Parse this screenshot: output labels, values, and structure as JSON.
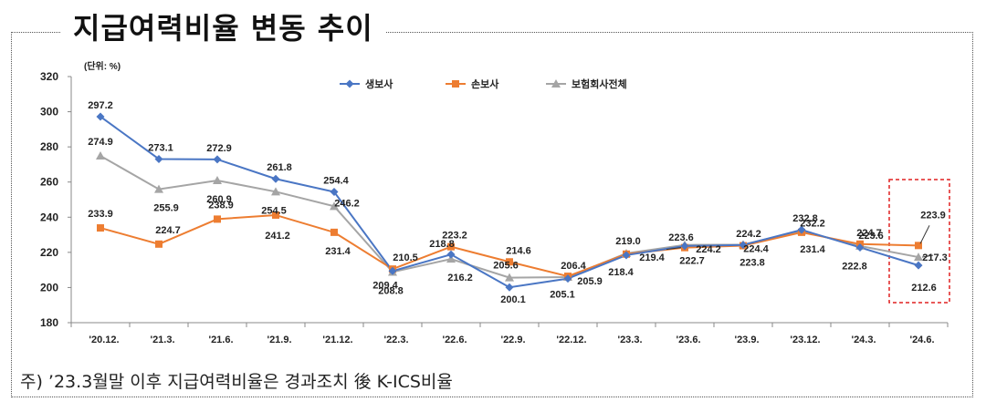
{
  "title": "지급여력비율 변동 추이",
  "footnote": "주) ’23.3월말 이후 지급여력비율은 경과조치 後 K-ICS비율",
  "chart_data": {
    "type": "line",
    "unit_label": "(단위: %)",
    "categories": [
      "'20.12.",
      "'21.3.",
      "'21.6.",
      "'21.9.",
      "'21.12.",
      "'22.3.",
      "'22.6.",
      "'22.9.",
      "'22.12.",
      "'23.3.",
      "'23.6.",
      "'23.9.",
      "'23.12.",
      "'24.3.",
      "'24.6."
    ],
    "ylim": [
      180,
      320
    ],
    "yticks": [
      180,
      200,
      220,
      240,
      260,
      280,
      300,
      320
    ],
    "grid": false,
    "legend_position": "top",
    "highlight_last_category": true,
    "series": [
      {
        "name": "생보사",
        "color": "#4a76c4",
        "marker": "diamond",
        "values": [
          297.2,
          273.1,
          272.9,
          261.8,
          254.4,
          209.4,
          218.8,
          200.1,
          205.1,
          218.4,
          223.6,
          224.2,
          232.8,
          222.8,
          212.6
        ]
      },
      {
        "name": "손보사",
        "color": "#ed7d31",
        "marker": "square",
        "values": [
          233.9,
          224.7,
          238.9,
          241.2,
          231.4,
          210.5,
          223.2,
          214.6,
          206.4,
          219.0,
          222.7,
          223.8,
          231.4,
          224.7,
          223.9
        ]
      },
      {
        "name": "보험회사전체",
        "color": "#a5a5a5",
        "marker": "triangle",
        "values": [
          274.9,
          255.9,
          260.9,
          254.5,
          246.2,
          208.8,
          216.2,
          205.6,
          205.9,
          219.4,
          224.2,
          224.4,
          232.2,
          223.6,
          217.3
        ]
      }
    ]
  }
}
